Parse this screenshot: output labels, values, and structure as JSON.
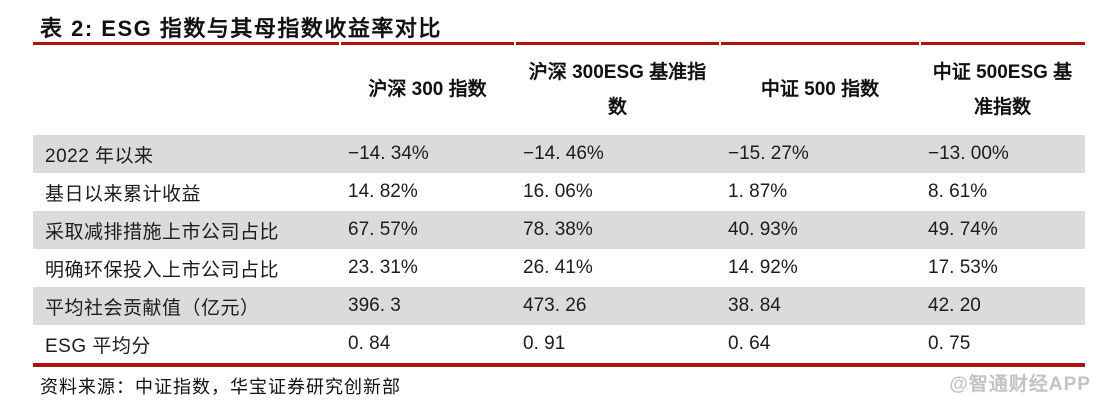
{
  "title": "表 2: ESG 指数与其母指数收益率对比",
  "table": {
    "columns": [
      "沪深 300 指数",
      "沪深 300ESG 基准指数",
      "中证 500 指数",
      "中证 500ESG 基准指数"
    ],
    "rows": [
      {
        "label": "2022 年以来",
        "values": [
          "−14. 34%",
          "−14. 46%",
          "−15. 27%",
          "−13. 00%"
        ]
      },
      {
        "label": "基日以来累计收益",
        "values": [
          "14. 82%",
          "16. 06%",
          "1. 87%",
          "8. 61%"
        ]
      },
      {
        "label": "采取减排措施上市公司占比",
        "values": [
          "67. 57%",
          "78. 38%",
          "40. 93%",
          "49. 74%"
        ]
      },
      {
        "label": "明确环保投入上市公司占比",
        "values": [
          "23. 31%",
          "26. 41%",
          "14. 92%",
          "17. 53%"
        ]
      },
      {
        "label": "平均社会贡献值（亿元）",
        "values": [
          "396. 3",
          "473. 26",
          "38. 84",
          "42. 20"
        ]
      },
      {
        "label": "ESG 平均分",
        "values": [
          "0. 84",
          "0. 91",
          "0. 64",
          "0. 75"
        ]
      }
    ]
  },
  "source_note": "资料来源：中证指数，华宝证券研究创新部",
  "watermark": "@智通财经APP",
  "colors": {
    "accent_red": "#b01111",
    "row_shade": "#dbdbdb",
    "text": "#1a1a1a",
    "watermark_gray": "#c3c3c3"
  }
}
